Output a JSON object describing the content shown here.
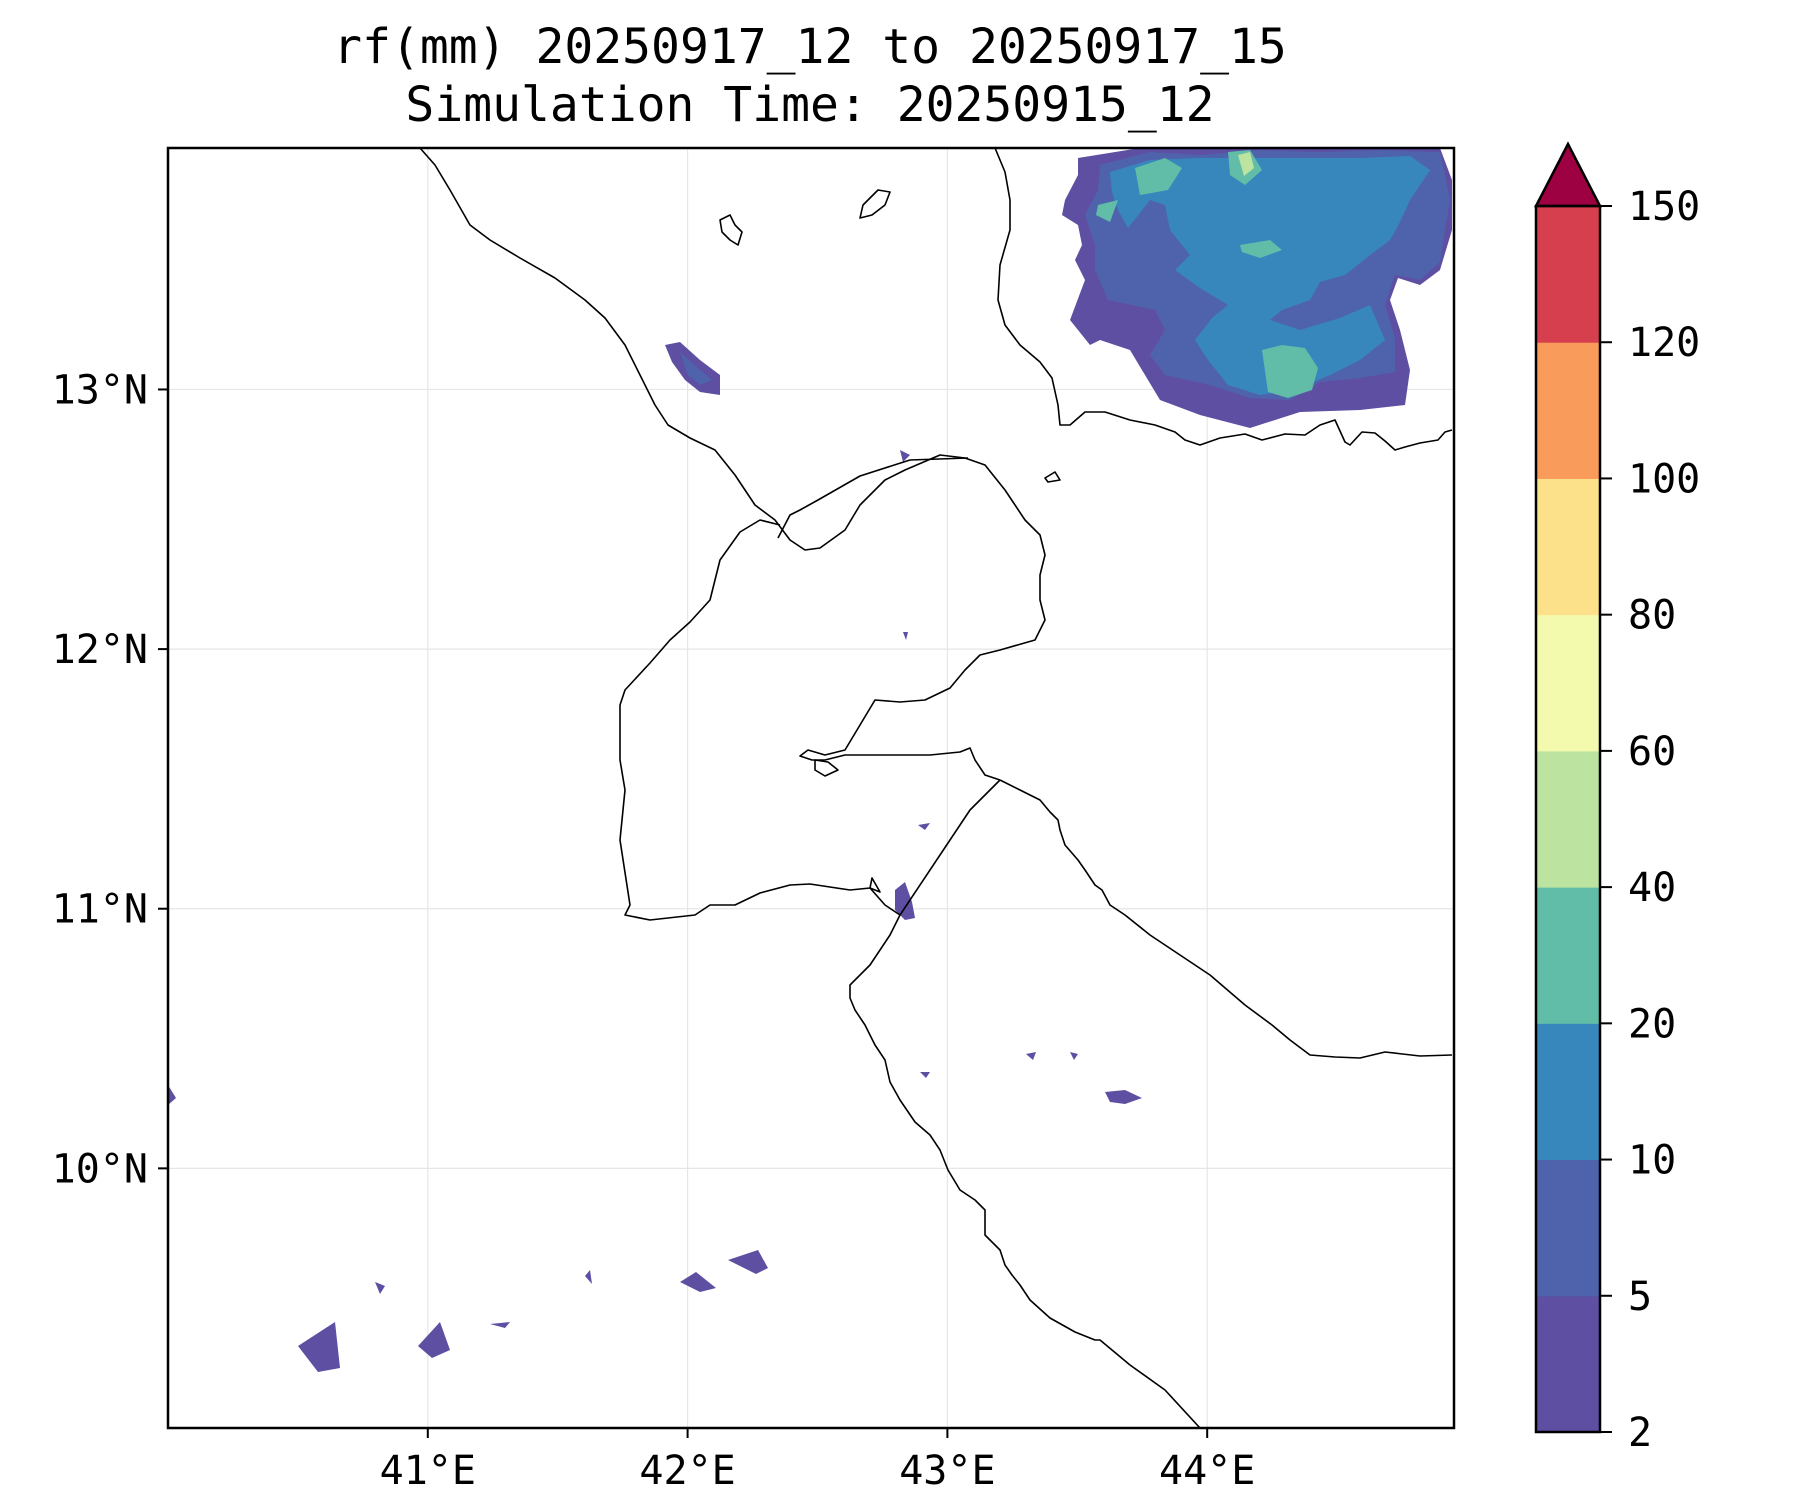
{
  "title": {
    "line1": "rf(mm) 20250917_12 to 20250917_15",
    "line2": "Simulation Time: 20250915_12"
  },
  "map": {
    "lon_range": [
      40.0,
      44.95
    ],
    "lat_range": [
      9.0,
      13.93
    ],
    "x_ticks": [
      {
        "value": 41,
        "label": "41°E"
      },
      {
        "value": 42,
        "label": "42°E"
      },
      {
        "value": 43,
        "label": "43°E"
      },
      {
        "value": 44,
        "label": "44°E"
      }
    ],
    "y_ticks": [
      {
        "value": 13,
        "label": "13°N"
      },
      {
        "value": 12,
        "label": "12°N"
      },
      {
        "value": 11,
        "label": "11°N"
      },
      {
        "value": 10,
        "label": "10°N"
      }
    ],
    "grid": true
  },
  "colorbar": {
    "levels": [
      "2",
      "5",
      "10",
      "20",
      "40",
      "60",
      "80",
      "100",
      "120",
      "150"
    ],
    "colors": [
      "#5e4fa2",
      "#4f63ad",
      "#3787bd",
      "#62bda8",
      "#bce4a0",
      "#f4faad",
      "#fde08a",
      "#f99b5a",
      "#d6404e"
    ],
    "extend_color": "#9e0142",
    "extend": "max"
  }
}
